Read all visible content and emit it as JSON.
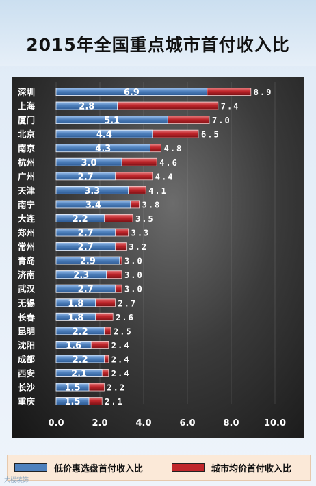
{
  "title": "2015年全国重点城市首付收入比",
  "watermark": "大楼装饰",
  "colors": {
    "low": "#4f81bd",
    "avg": "#c0262b"
  },
  "legend": {
    "low_label": "低价惠选盘首付收入比",
    "avg_label": "城市均价首付收入比"
  },
  "chart_data": {
    "type": "bar",
    "orientation": "horizontal",
    "title": "2015年全国重点城市首付收入比",
    "xlabel": "",
    "ylabel": "",
    "xlim": [
      0,
      10
    ],
    "xticks": [
      "0.0",
      "2.0",
      "4.0",
      "6.0",
      "8.0",
      "10.0"
    ],
    "grid": true,
    "legend_position": "bottom",
    "categories": [
      "深圳",
      "上海",
      "厦门",
      "北京",
      "南京",
      "杭州",
      "广州",
      "天津",
      "南宁",
      "大连",
      "郑州",
      "常州",
      "青岛",
      "济南",
      "武汉",
      "无锡",
      "长春",
      "昆明",
      "沈阳",
      "成都",
      "西安",
      "长沙",
      "重庆"
    ],
    "series": [
      {
        "name": "低价惠选盘首付收入比",
        "values": [
          6.9,
          2.8,
          5.1,
          4.4,
          4.3,
          3.0,
          2.7,
          3.3,
          3.4,
          2.2,
          2.7,
          2.7,
          2.9,
          2.3,
          2.7,
          1.8,
          1.8,
          2.2,
          1.6,
          2.2,
          2.1,
          1.5,
          1.5
        ]
      },
      {
        "name": "城市均价首付收入比",
        "values": [
          8.9,
          7.4,
          7.0,
          6.5,
          4.8,
          4.6,
          4.4,
          4.1,
          3.8,
          3.5,
          3.3,
          3.2,
          3.0,
          3.0,
          3.0,
          2.7,
          2.6,
          2.5,
          2.4,
          2.4,
          2.4,
          2.2,
          2.1
        ]
      }
    ]
  }
}
